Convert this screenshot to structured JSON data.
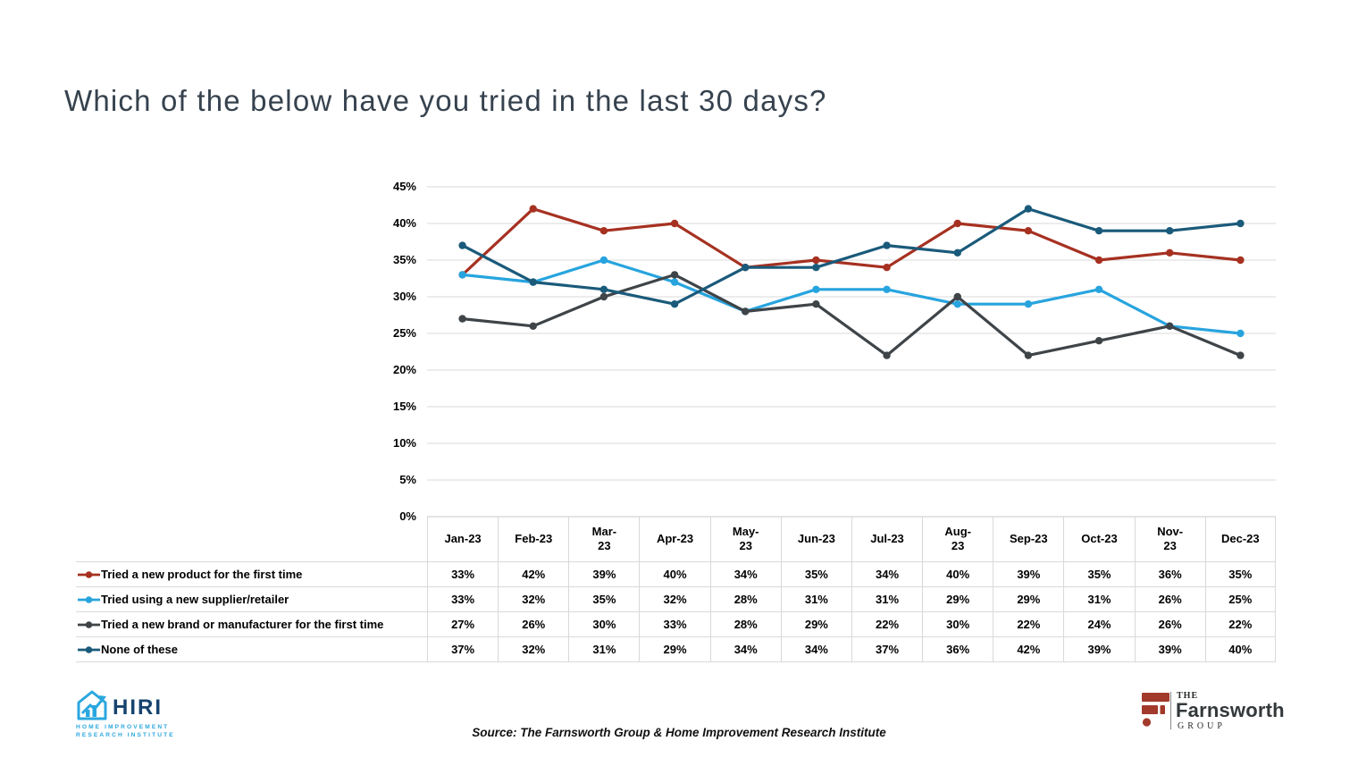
{
  "title": "Which of the below have you tried in the last 30 days?",
  "source": "Source: The Farnsworth Group & Home Improvement Research Institute",
  "chart_data": {
    "type": "line",
    "categories": [
      "Jan-23",
      "Feb-23",
      "Mar-23",
      "Apr-23",
      "May-23",
      "Jun-23",
      "Jul-23",
      "Aug-23",
      "Sep-23",
      "Oct-23",
      "Nov-23",
      "Dec-23"
    ],
    "column_headers_display": [
      "Jan-23",
      "Feb-23",
      "Mar-\n23",
      "Apr-23",
      "May-\n23",
      "Jun-23",
      "Jul-23",
      "Aug-\n23",
      "Sep-23",
      "Oct-23",
      "Nov-\n23",
      "Dec-23"
    ],
    "series": [
      {
        "name": "Tried a new product for the first time",
        "color": "#A63121",
        "values": [
          33,
          42,
          39,
          40,
          34,
          35,
          34,
          40,
          39,
          35,
          36,
          35
        ]
      },
      {
        "name": "Tried using a new supplier/retailer",
        "color": "#27A4DE",
        "values": [
          33,
          32,
          35,
          32,
          28,
          31,
          31,
          29,
          29,
          31,
          26,
          25
        ]
      },
      {
        "name": "Tried a new brand or manufacturer for the first time",
        "color": "#3E4448",
        "values": [
          27,
          26,
          30,
          33,
          28,
          29,
          22,
          30,
          22,
          24,
          26,
          22
        ]
      },
      {
        "name": "None of these",
        "color": "#1A5A7A",
        "values": [
          37,
          32,
          31,
          29,
          34,
          34,
          37,
          36,
          42,
          39,
          39,
          40
        ]
      }
    ],
    "value_suffix": "%",
    "y_tick_labels": [
      "0%",
      "5%",
      "10%",
      "15%",
      "20%",
      "25%",
      "30%",
      "35%",
      "40%",
      "45%"
    ],
    "ylim": [
      0,
      45
    ],
    "y_tick_step": 5,
    "grid": true,
    "gridline_color": "#D9D9D9",
    "axis_line_color": "#C8C8C8",
    "legend_position": "table-left"
  },
  "logos": {
    "hiri": {
      "name": "HIRI",
      "caption": "HOME IMPROVEMENT\nRESEARCH INSTITUTE",
      "brand_blue": "#2AA7DF",
      "brand_navy": "#16436E"
    },
    "farnsworth": {
      "the": "THE",
      "name": "Farnsworth",
      "group": "GROUP",
      "brand_red": "#A23A2B",
      "text_color": "#33383B"
    }
  }
}
